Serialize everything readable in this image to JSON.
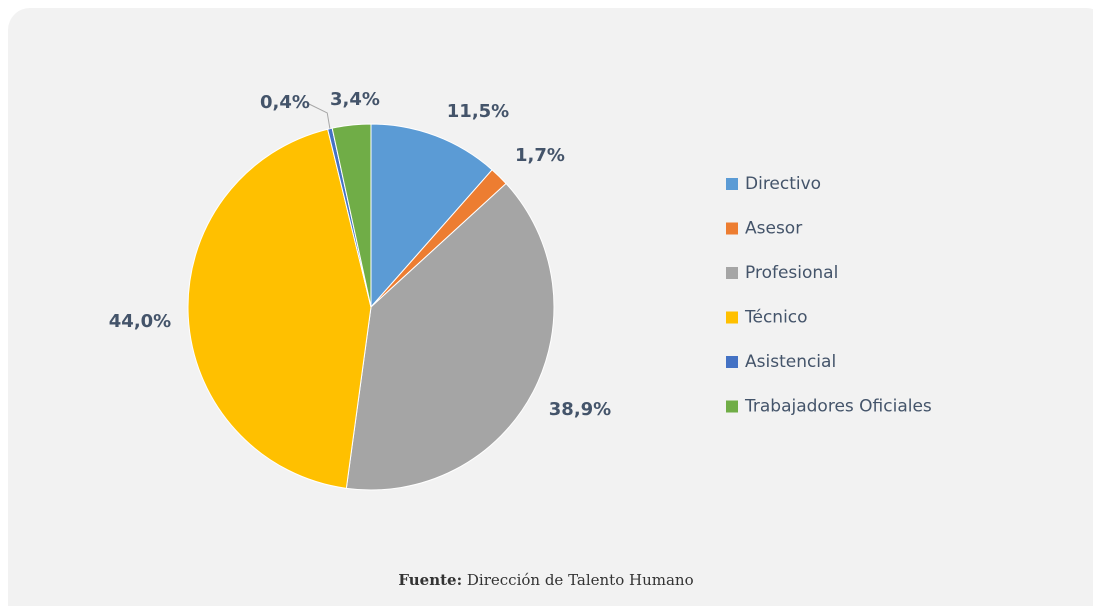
{
  "chart_data": {
    "type": "pie",
    "categories": [
      "Directivo",
      "Asesor",
      "Profesional",
      "Técnico",
      "Asistencial",
      "Trabajadores Oficiales"
    ],
    "values": [
      11.5,
      1.7,
      38.9,
      44.0,
      0.4,
      3.4
    ],
    "value_labels": [
      "11,5%",
      "1,7%",
      "38,9%",
      "44,0%",
      "0,4%",
      "3,4%"
    ],
    "colors": [
      "#5b9bd5",
      "#ed7d31",
      "#a5a5a5",
      "#ffc000",
      "#4472c4",
      "#70ad47"
    ],
    "legend": "right",
    "source_label": "Fuente:",
    "source": "Dirección de Talento Humano"
  }
}
